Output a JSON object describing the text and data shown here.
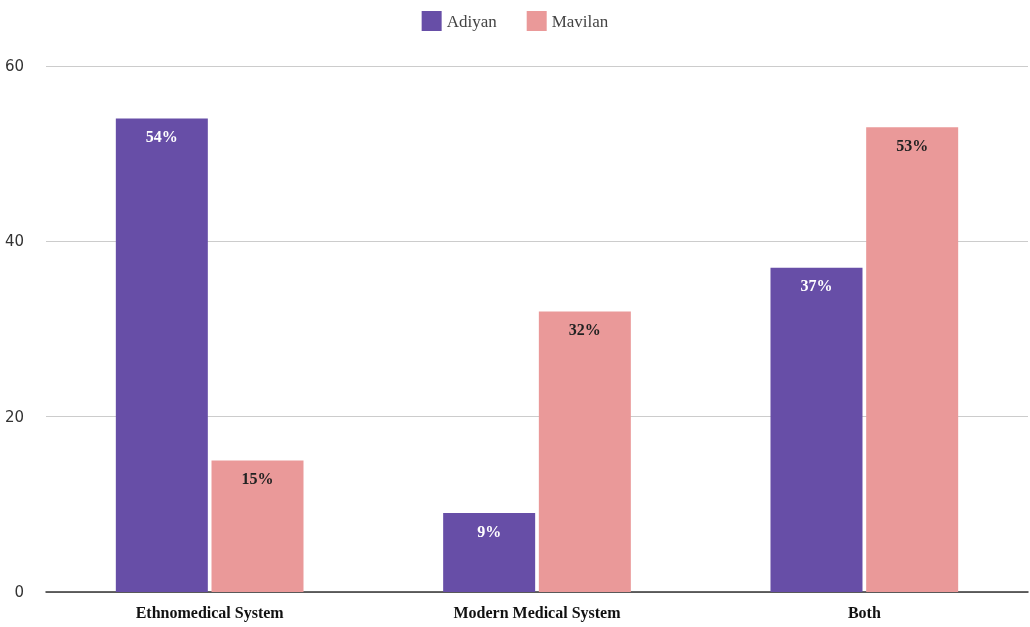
{
  "chart_data": {
    "type": "bar",
    "categories": [
      "Ethnomedical System",
      "Modern Medical System",
      "Both"
    ],
    "series": [
      {
        "name": "Adiyan",
        "color": "#674ea7",
        "values": [
          54,
          9,
          37
        ],
        "value_labels": [
          "54%",
          "9%",
          "37%"
        ]
      },
      {
        "name": "Mavilan",
        "color": "#ea9999",
        "values": [
          15,
          32,
          53
        ],
        "value_labels": [
          "15%",
          "32%",
          "53%"
        ]
      }
    ],
    "ylim": [
      0,
      60
    ],
    "yticks": [
      0,
      20,
      40,
      60
    ],
    "grid": "y",
    "legend": "top"
  }
}
